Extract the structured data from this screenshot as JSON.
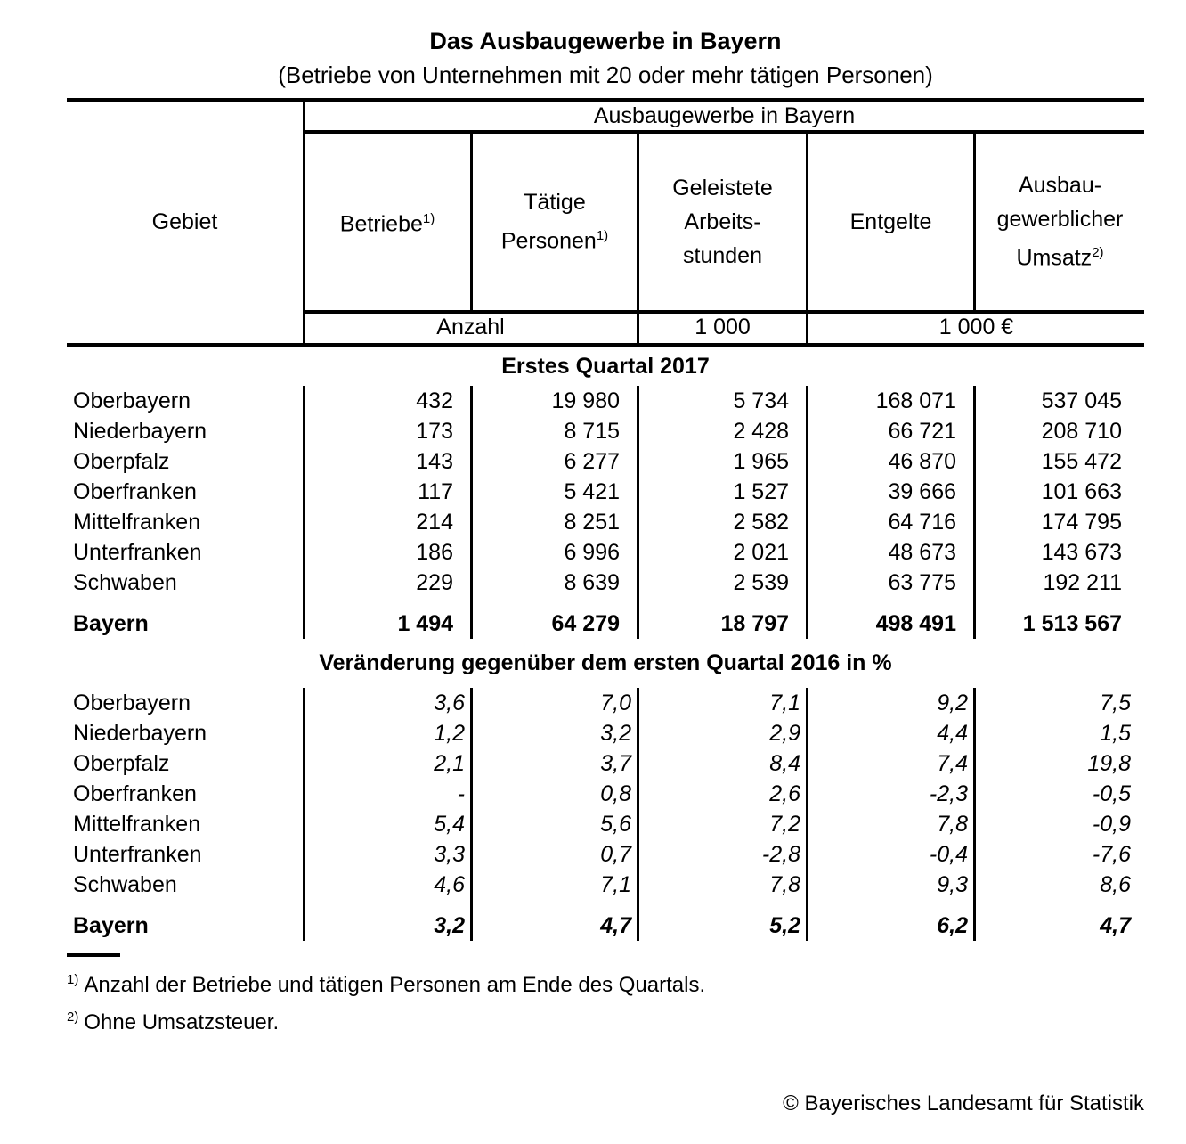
{
  "title": "Das Ausbaugewerbe in Bayern",
  "subtitle": "(Betriebe von Unternehmen mit 20 oder mehr tätigen Personen)",
  "table": {
    "group_header": "Ausbaugewerbe in Bayern",
    "gebiet_label": "Gebiet",
    "columns": [
      {
        "lines": [
          "Betriebe"
        ],
        "sup": "1)"
      },
      {
        "lines": [
          "Tätige",
          "Personen"
        ],
        "sup": "1)"
      },
      {
        "lines": [
          "Geleistete",
          "Arbeits-",
          "stunden"
        ],
        "sup": ""
      },
      {
        "lines": [
          "Entgelte"
        ],
        "sup": ""
      },
      {
        "lines": [
          "Ausbau-",
          "gewerblicher",
          "Umsatz"
        ],
        "sup": "2)"
      }
    ],
    "units": [
      "Anzahl",
      "1 000",
      "1 000 €"
    ]
  },
  "sections": [
    {
      "heading": "Erstes Quartal 2017",
      "rows": [
        {
          "gebiet": "Oberbayern",
          "values": [
            "432",
            "19 980",
            "5 734",
            "168 071",
            "537 045"
          ]
        },
        {
          "gebiet": "Niederbayern",
          "values": [
            "173",
            "8 715",
            "2 428",
            "66 721",
            "208 710"
          ]
        },
        {
          "gebiet": "Oberpfalz",
          "values": [
            "143",
            "6 277",
            "1 965",
            "46 870",
            "155 472"
          ]
        },
        {
          "gebiet": "Oberfranken",
          "values": [
            "117",
            "5 421",
            "1 527",
            "39 666",
            "101 663"
          ]
        },
        {
          "gebiet": "Mittelfranken",
          "values": [
            "214",
            "8 251",
            "2 582",
            "64 716",
            "174 795"
          ]
        },
        {
          "gebiet": "Unterfranken",
          "values": [
            "186",
            "6 996",
            "2 021",
            "48 673",
            "143 673"
          ]
        },
        {
          "gebiet": "Schwaben",
          "values": [
            "229",
            "8 639",
            "2 539",
            "63 775",
            "192 211"
          ]
        }
      ],
      "total": {
        "gebiet": "Bayern",
        "values": [
          "1 494",
          "64 279",
          "18 797",
          "498 491",
          "1 513 567"
        ]
      }
    },
    {
      "heading": "Veränderung gegenüber dem ersten Quartal 2016 in %",
      "rows": [
        {
          "gebiet": "Oberbayern",
          "values": [
            "3,6",
            "7,0",
            "7,1",
            "9,2",
            "7,5"
          ]
        },
        {
          "gebiet": "Niederbayern",
          "values": [
            "1,2",
            "3,2",
            "2,9",
            "4,4",
            "1,5"
          ]
        },
        {
          "gebiet": "Oberpfalz",
          "values": [
            "2,1",
            "3,7",
            "8,4",
            "7,4",
            "19,8"
          ]
        },
        {
          "gebiet": "Oberfranken",
          "values": [
            "-",
            "0,8",
            "2,6",
            "-2,3",
            "-0,5"
          ]
        },
        {
          "gebiet": "Mittelfranken",
          "values": [
            "5,4",
            "5,6",
            "7,2",
            "7,8",
            "-0,9"
          ]
        },
        {
          "gebiet": "Unterfranken",
          "values": [
            "3,3",
            "0,7",
            "-2,8",
            "-0,4",
            "-7,6"
          ]
        },
        {
          "gebiet": "Schwaben",
          "values": [
            "4,6",
            "7,1",
            "7,8",
            "9,3",
            "8,6"
          ]
        }
      ],
      "total": {
        "gebiet": "Bayern",
        "values": [
          "3,2",
          "4,7",
          "5,2",
          "6,2",
          "4,7"
        ]
      }
    }
  ],
  "footnotes": [
    {
      "sup": "1)",
      "text": "Anzahl der Betriebe und tätigen Personen am Ende des Quartals."
    },
    {
      "sup": "2)",
      "text": "Ohne Umsatzsteuer."
    }
  ],
  "copyright": "© Bayerisches Landesamt für Statistik"
}
